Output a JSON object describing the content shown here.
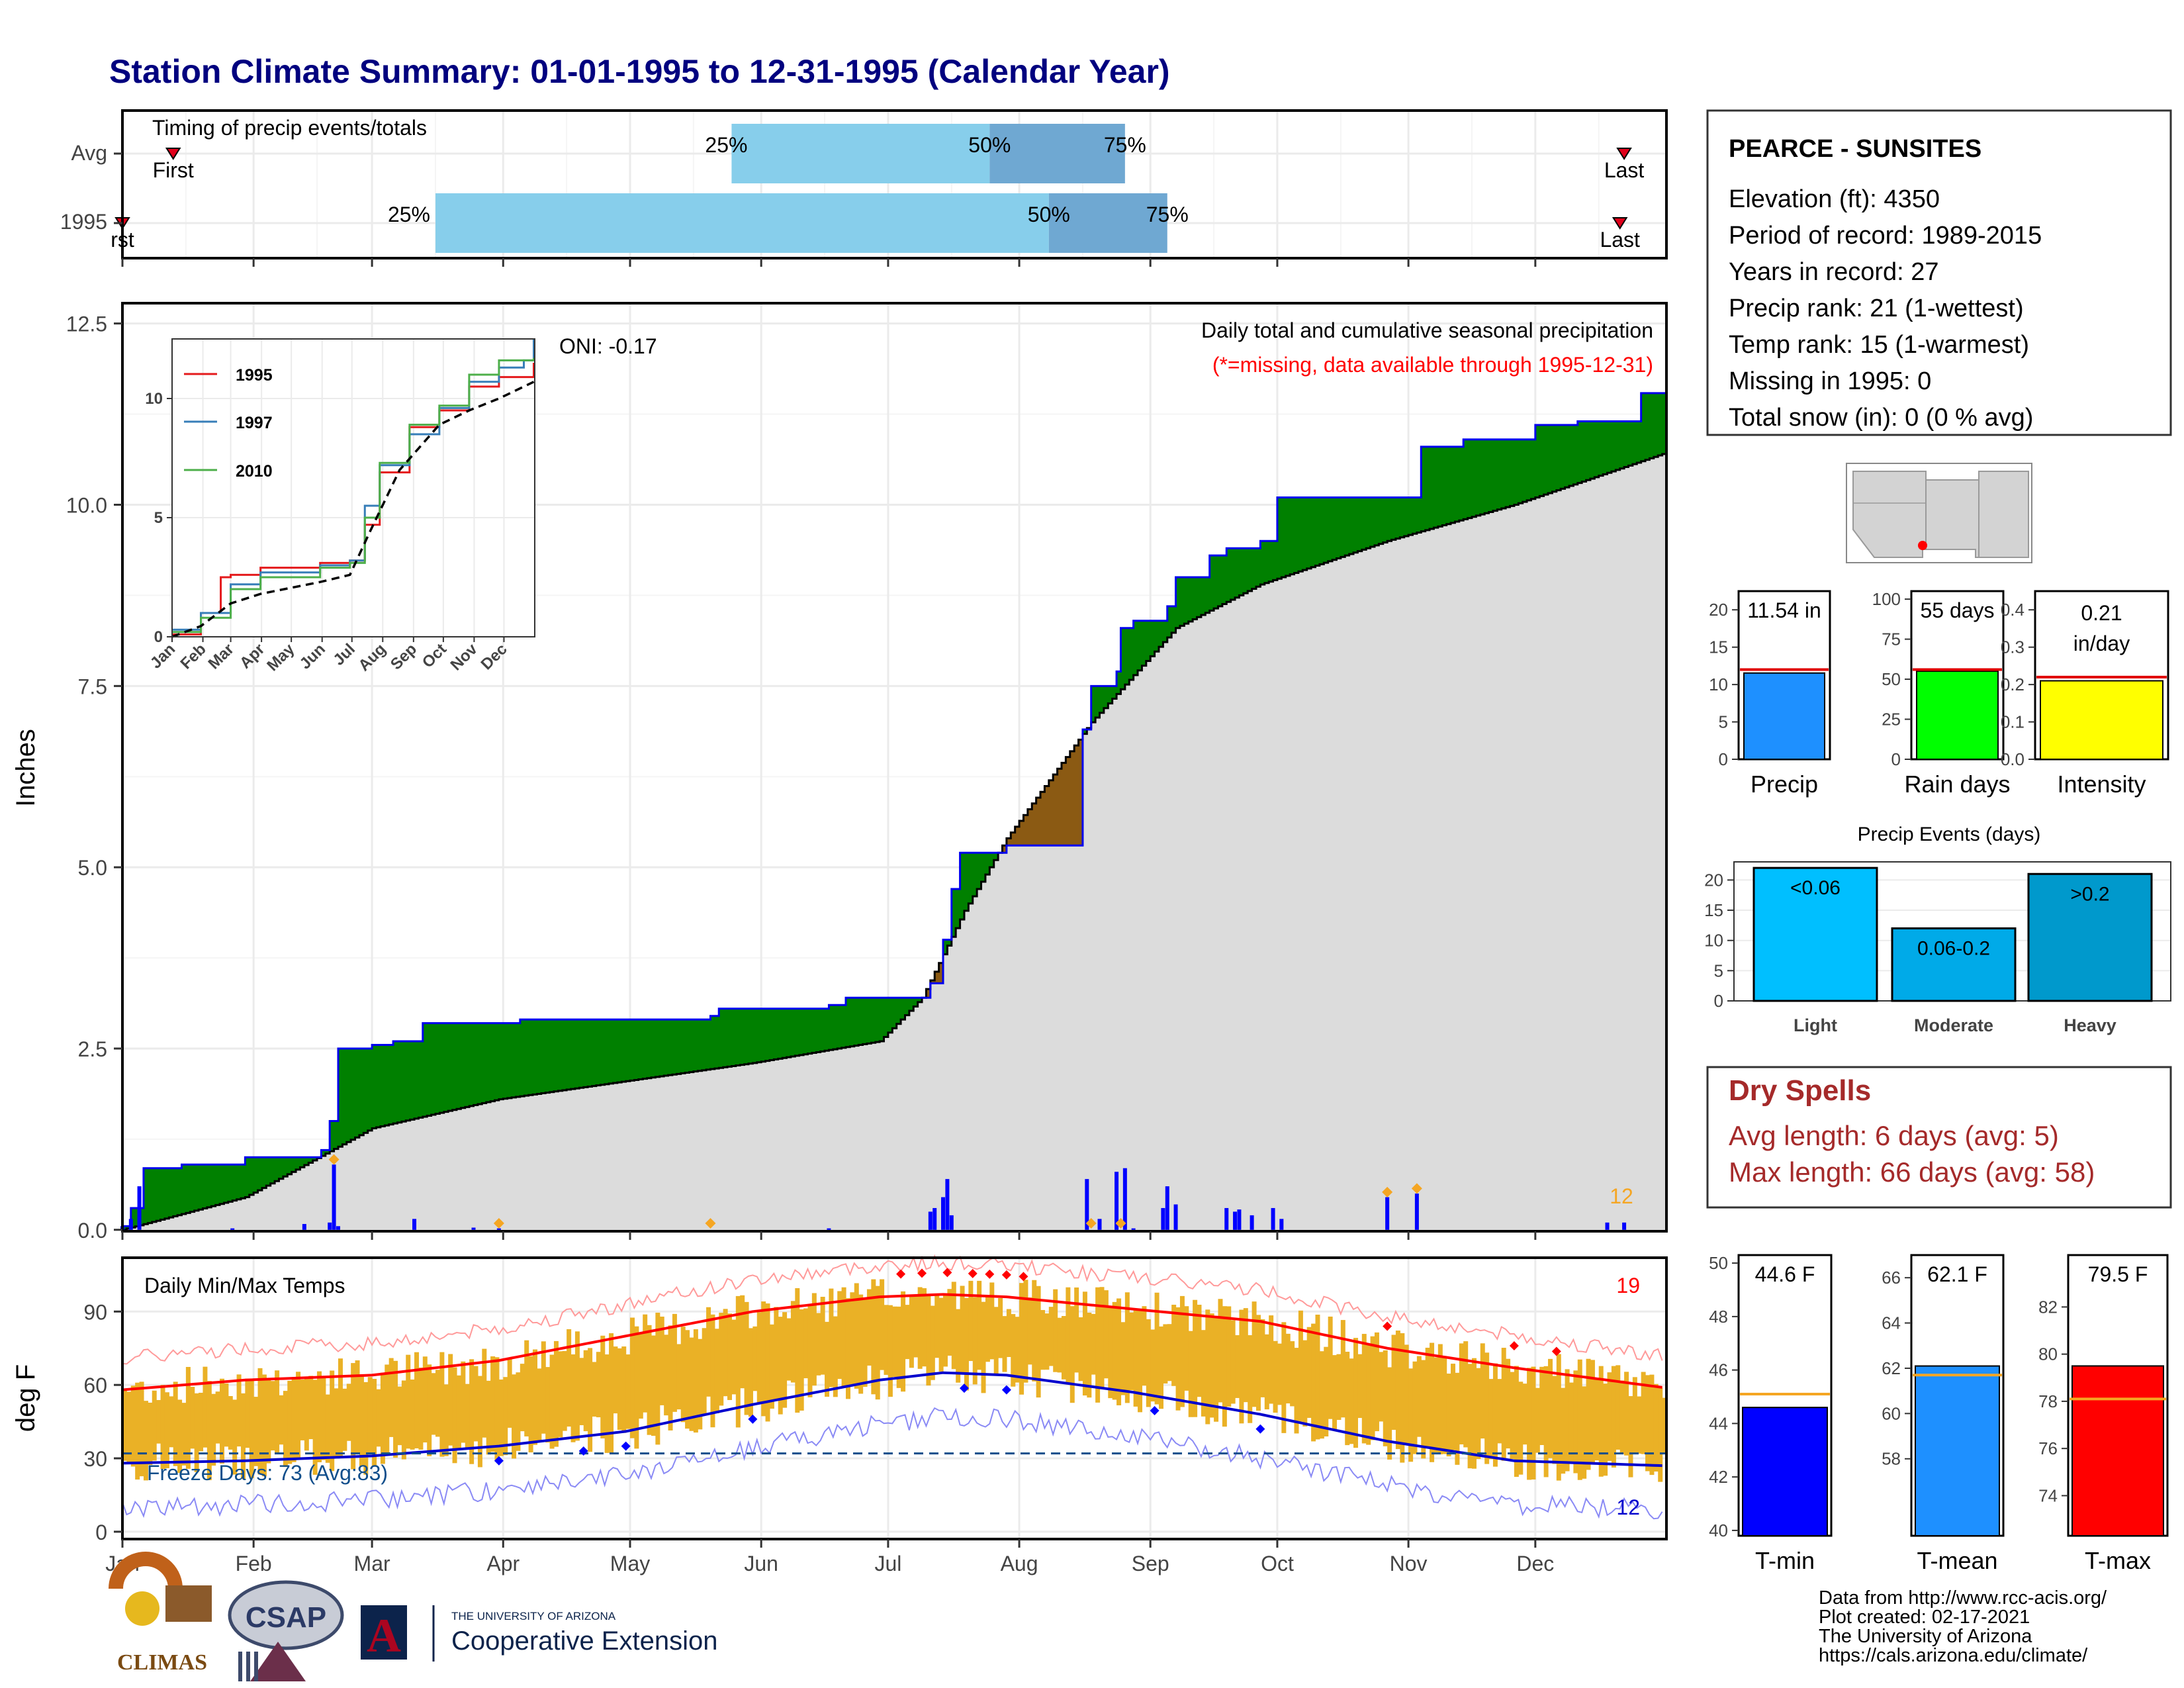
{
  "title": "Station Climate Summary: 01-01-1995 to 12-31-1995 (Calendar Year)",
  "timing": {
    "title": "Timing of precip events/totals",
    "rows": [
      {
        "label": "Avg",
        "first_doy": 13,
        "p25_doy": 145,
        "p50_doy": 206,
        "p75_doy": 238,
        "last_doy": 356,
        "first_label": "First",
        "last_label": "Last",
        "p25_label": "25%",
        "p50_label": "50%",
        "p75_label": "75%"
      },
      {
        "label": "1995",
        "first_doy": 1,
        "p25_doy": 75,
        "p50_doy": 220,
        "p75_doy": 248,
        "last_doy": 355,
        "first_label": "rst",
        "last_label": "Last",
        "p25_label": "25%",
        "p50_label": "50%",
        "p75_label": "75%"
      }
    ]
  },
  "precip_panel": {
    "ylabel": "Inches",
    "yticks": [
      "0.0",
      "2.5",
      "5.0",
      "7.5",
      "10.0",
      "12.5"
    ],
    "oni_label": "ONI: -0.17",
    "title_label": "Daily total and cumulative seasonal precipitation",
    "missing_label": "(*=missing, data available through 1995-12-31)",
    "count_label": "12",
    "months": [
      "Jan",
      "Feb",
      "Mar",
      "Apr",
      "May",
      "Jun",
      "Jul",
      "Aug",
      "Sep",
      "Oct",
      "Nov",
      "Dec"
    ]
  },
  "inset": {
    "legend": [
      "1995",
      "1997",
      "2010"
    ],
    "yticks": [
      "0",
      "5",
      "10"
    ],
    "months": [
      "Jan",
      "Feb",
      "Mar",
      "Apr",
      "May",
      "Jun",
      "Jul",
      "Aug",
      "Sep",
      "Oct",
      "Nov",
      "Dec"
    ]
  },
  "temp_panel": {
    "ylabel": "deg F",
    "title_label": "Daily Min/Max Temps",
    "max_count_label": "19",
    "min_count_label": "12",
    "freeze_label": "Freeze Days: 73 (Avg:83)",
    "yticks": [
      "0",
      "30",
      "60",
      "90"
    ],
    "months": [
      "Jan",
      "Feb",
      "Mar",
      "Apr",
      "May",
      "Jun",
      "Jul",
      "Aug",
      "Sep",
      "Oct",
      "Nov",
      "Dec"
    ]
  },
  "station": {
    "name": "PEARCE - SUNSITES",
    "lines": [
      "Elevation (ft): 4350",
      "Period of record: 1989-2015",
      "Years in record: 27",
      "Precip rank: 21 (1-wettest)",
      "Temp rank: 15 (1-warmest)",
      "Missing in 1995: 0",
      "Total snow (in): 0 (0 % avg)"
    ]
  },
  "summary_bars": [
    {
      "label": "Precip",
      "value_label": "11.54 in",
      "value": 11.54,
      "avg": 12.0,
      "max": 22.5,
      "ticks": [
        "0",
        "5",
        "10",
        "15",
        "20"
      ],
      "color": "#1e90ff"
    },
    {
      "label": "Rain days",
      "value_label": "55 days",
      "value": 55,
      "avg": 56,
      "max": 105,
      "ticks": [
        "0",
        "25",
        "50",
        "75",
        "100"
      ],
      "color": "#00ff00"
    },
    {
      "label": "Intensity",
      "value_label": "0.21 in/day",
      "value": 0.21,
      "avg": 0.22,
      "max": 0.45,
      "ticks": [
        "0.0",
        "0.1",
        "0.2",
        "0.3",
        "0.4"
      ],
      "color": "#ffff00"
    }
  ],
  "precip_events": {
    "title": "Precip Events (days)",
    "yticks": [
      "0",
      "5",
      "10",
      "15",
      "20"
    ],
    "bars": [
      {
        "label": "Light",
        "value_label": "<0.06",
        "value": 22,
        "color": "#00bfff"
      },
      {
        "label": "Moderate",
        "value_label": "0.06-0.2",
        "value": 12,
        "color": "#00aae8"
      },
      {
        "label": "Heavy",
        "value_label": ">0.2",
        "value": 21,
        "color": "#0099cc"
      }
    ]
  },
  "dry_spells": {
    "title": "Dry Spells",
    "avg_line": "Avg length: 6 days (avg: 5)",
    "max_line": "Max length: 66 days (avg: 58)"
  },
  "temp_bars": [
    {
      "label": "T-min",
      "value_label": "44.6 F",
      "value": 44.6,
      "avg": 45.1,
      "ymin": 39.8,
      "ymax": 50.3,
      "ticks": [
        "40",
        "42",
        "44",
        "46",
        "48",
        "50"
      ],
      "color": "#0000ff"
    },
    {
      "label": "T-mean",
      "value_label": "62.1 F",
      "value": 62.1,
      "avg": 61.7,
      "ymin": 54.6,
      "ymax": 67.0,
      "ticks": [
        "58",
        "60",
        "62",
        "64",
        "66"
      ],
      "color": "#1e90ff"
    },
    {
      "label": "T-max",
      "value_label": "79.5 F",
      "value": 79.5,
      "avg": 78.1,
      "ymin": 72.3,
      "ymax": 84.2,
      "ticks": [
        "74",
        "76",
        "78",
        "80",
        "82"
      ],
      "color": "#ff0000"
    }
  ],
  "footer": {
    "lines": [
      "Data from http://www.rcc-acis.org/",
      "Plot created: 02-17-2021",
      "The University of Arizona",
      "https://cals.arizona.edu/climate/"
    ],
    "climas": "CLIMAS",
    "csap": "CSAP",
    "ua_small": "THE UNIVERSITY OF ARIZONA",
    "ua_big": "Cooperative Extension"
  },
  "chart_data": [
    {
      "type": "area",
      "title": "Daily total and cumulative seasonal precipitation",
      "ylabel": "Inches",
      "ylim": [
        0,
        12.5
      ],
      "x_unit": "day of year 1995",
      "series": [
        {
          "name": "",
          "x": [
            1,
            3,
            6,
            15,
            30,
            48,
            50,
            52,
            60,
            65,
            72,
            95,
            140,
            142,
            168,
            172,
            178,
            191,
            192,
            195,
            197,
            199,
            210,
            215,
            228,
            230,
            236,
            237,
            240,
            248,
            250,
            258,
            262,
            270,
            274,
            288,
            308,
            318,
            335,
            345,
            360,
            365
          ],
          "y": [
            0.05,
            0.3,
            0.85,
            0.9,
            1.0,
            1.1,
            1.5,
            2.5,
            2.55,
            2.6,
            2.85,
            2.9,
            2.95,
            3.05,
            3.1,
            3.2,
            3.2,
            3.2,
            3.4,
            4.0,
            4.7,
            5.2,
            5.3,
            5.3,
            6.9,
            7.5,
            7.7,
            8.3,
            8.4,
            8.6,
            9.0,
            9.3,
            9.4,
            9.5,
            10.1,
            10.1,
            10.8,
            10.9,
            11.1,
            11.15,
            11.54,
            11.54
          ]
        },
        {
          "name": "",
          "x": [
            1,
            30,
            60,
            90,
            120,
            150,
            180,
            190,
            200,
            210,
            230,
            250,
            270,
            300,
            330,
            365
          ],
          "y": [
            0.0,
            0.45,
            1.4,
            1.8,
            2.05,
            2.3,
            2.6,
            3.2,
            4.4,
            5.4,
            7.0,
            8.3,
            8.9,
            9.5,
            10.0,
            10.7
          ]
        }
      ],
      "daily_bars": {
        "x": [
          1,
          3,
          5,
          27,
          44,
          50,
          51,
          52,
          70,
          84,
          90,
          168,
          192,
          193,
          195,
          196,
          197,
          229,
          232,
          236,
          238,
          240,
          247,
          248,
          250,
          262,
          264,
          265,
          268,
          273,
          275,
          300,
          307,
          352,
          356
        ],
        "y": [
          0.05,
          0.15,
          0.6,
          0.02,
          0.08,
          0.1,
          0.9,
          0.05,
          0.15,
          0.03,
          0.02,
          0.02,
          0.25,
          0.3,
          0.45,
          0.7,
          0.2,
          0.7,
          0.15,
          0.8,
          0.85,
          0.02,
          0.3,
          0.6,
          0.35,
          0.3,
          0.25,
          0.28,
          0.2,
          0.3,
          0.15,
          0.45,
          0.5,
          0.1,
          0.1
        ]
      }
    },
    {
      "type": "line",
      "title": "Daily Min/Max Temps",
      "ylabel": "deg F",
      "ylim": [
        -3,
        112
      ],
      "x_unit": "day of year 1995",
      "series": [
        {
          "name": "",
          "x": [
            1,
            30,
            60,
            90,
            120,
            150,
            180,
            195,
            210,
            240,
            270,
            300,
            330,
            365
          ],
          "y": [
            58,
            62,
            64,
            70,
            80,
            90,
            96,
            97,
            96,
            91,
            86,
            75,
            67,
            59
          ]
        },
        {
          "name": "",
          "x": [
            1,
            30,
            60,
            90,
            120,
            150,
            180,
            195,
            210,
            240,
            270,
            300,
            330,
            365
          ],
          "y": [
            28,
            29,
            31,
            35,
            41,
            52,
            62,
            65,
            64,
            57,
            48,
            37,
            29,
            27
          ]
        }
      ],
      "freeze_threshold": 32
    },
    {
      "type": "line",
      "title": "",
      "ylim": [
        0,
        12.5
      ],
      "x_unit": "day of year",
      "series": [
        {
          "name": "1995",
          "x": [
            1,
            30,
            50,
            60,
            90,
            150,
            180,
            195,
            210,
            240,
            270,
            300,
            330,
            365
          ],
          "y": [
            0.1,
            1.0,
            2.5,
            2.6,
            2.9,
            3.1,
            3.2,
            4.7,
            6.9,
            8.8,
            9.5,
            10.5,
            10.9,
            11.5
          ]
        },
        {
          "name": "1997",
          "x": [
            1,
            30,
            60,
            90,
            150,
            180,
            195,
            210,
            240,
            270,
            300,
            330,
            355,
            365
          ],
          "y": [
            0.3,
            1.0,
            2.2,
            2.7,
            3.0,
            3.2,
            5.5,
            7.2,
            8.5,
            9.6,
            10.7,
            11.3,
            11.6,
            12.5
          ]
        },
        {
          "name": "2010",
          "x": [
            1,
            30,
            60,
            90,
            150,
            180,
            195,
            210,
            240,
            270,
            300,
            330,
            365
          ],
          "y": [
            0.2,
            0.8,
            2.0,
            2.5,
            2.9,
            3.1,
            5.0,
            7.3,
            8.9,
            9.7,
            11.0,
            11.6,
            11.7
          ]
        },
        {
          "name": "",
          "x": [
            1,
            30,
            60,
            90,
            120,
            150,
            180,
            200,
            230,
            270,
            300,
            330,
            365
          ],
          "y": [
            0.0,
            0.45,
            1.4,
            1.8,
            2.05,
            2.3,
            2.6,
            4.4,
            7.0,
            8.9,
            9.5,
            10.0,
            10.7
          ]
        }
      ]
    }
  ]
}
